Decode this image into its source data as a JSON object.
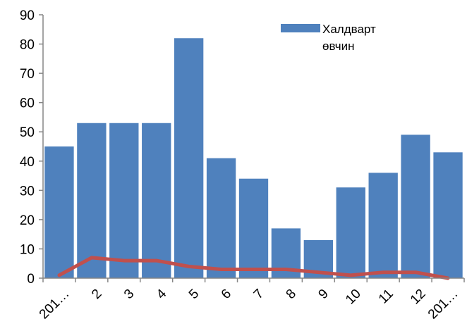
{
  "chart_data": {
    "type": "bar",
    "categories": [
      "201…",
      "2",
      "3",
      "4",
      "5",
      "6",
      "7",
      "8",
      "9",
      "10",
      "11",
      "12",
      "201…"
    ],
    "series": [
      {
        "name": "Халдварт өвчин",
        "type": "bar",
        "color": "#4f81bd",
        "values": [
          45,
          53,
          53,
          53,
          82,
          41,
          34,
          17,
          13,
          31,
          36,
          49,
          43
        ]
      },
      {
        "type": "line",
        "color": "#c0504d",
        "values": [
          1,
          7,
          6,
          6,
          4,
          3,
          3,
          3,
          2,
          1,
          2,
          2,
          0
        ]
      }
    ],
    "ylim": [
      0,
      90
    ],
    "yticks": [
      0,
      10,
      20,
      30,
      40,
      50,
      60,
      70,
      80,
      90
    ],
    "title": "",
    "xlabel": "",
    "ylabel": "",
    "grid": false,
    "legend": {
      "position": "top-right",
      "lines": [
        "Халдварт",
        "өвчин"
      ]
    }
  }
}
